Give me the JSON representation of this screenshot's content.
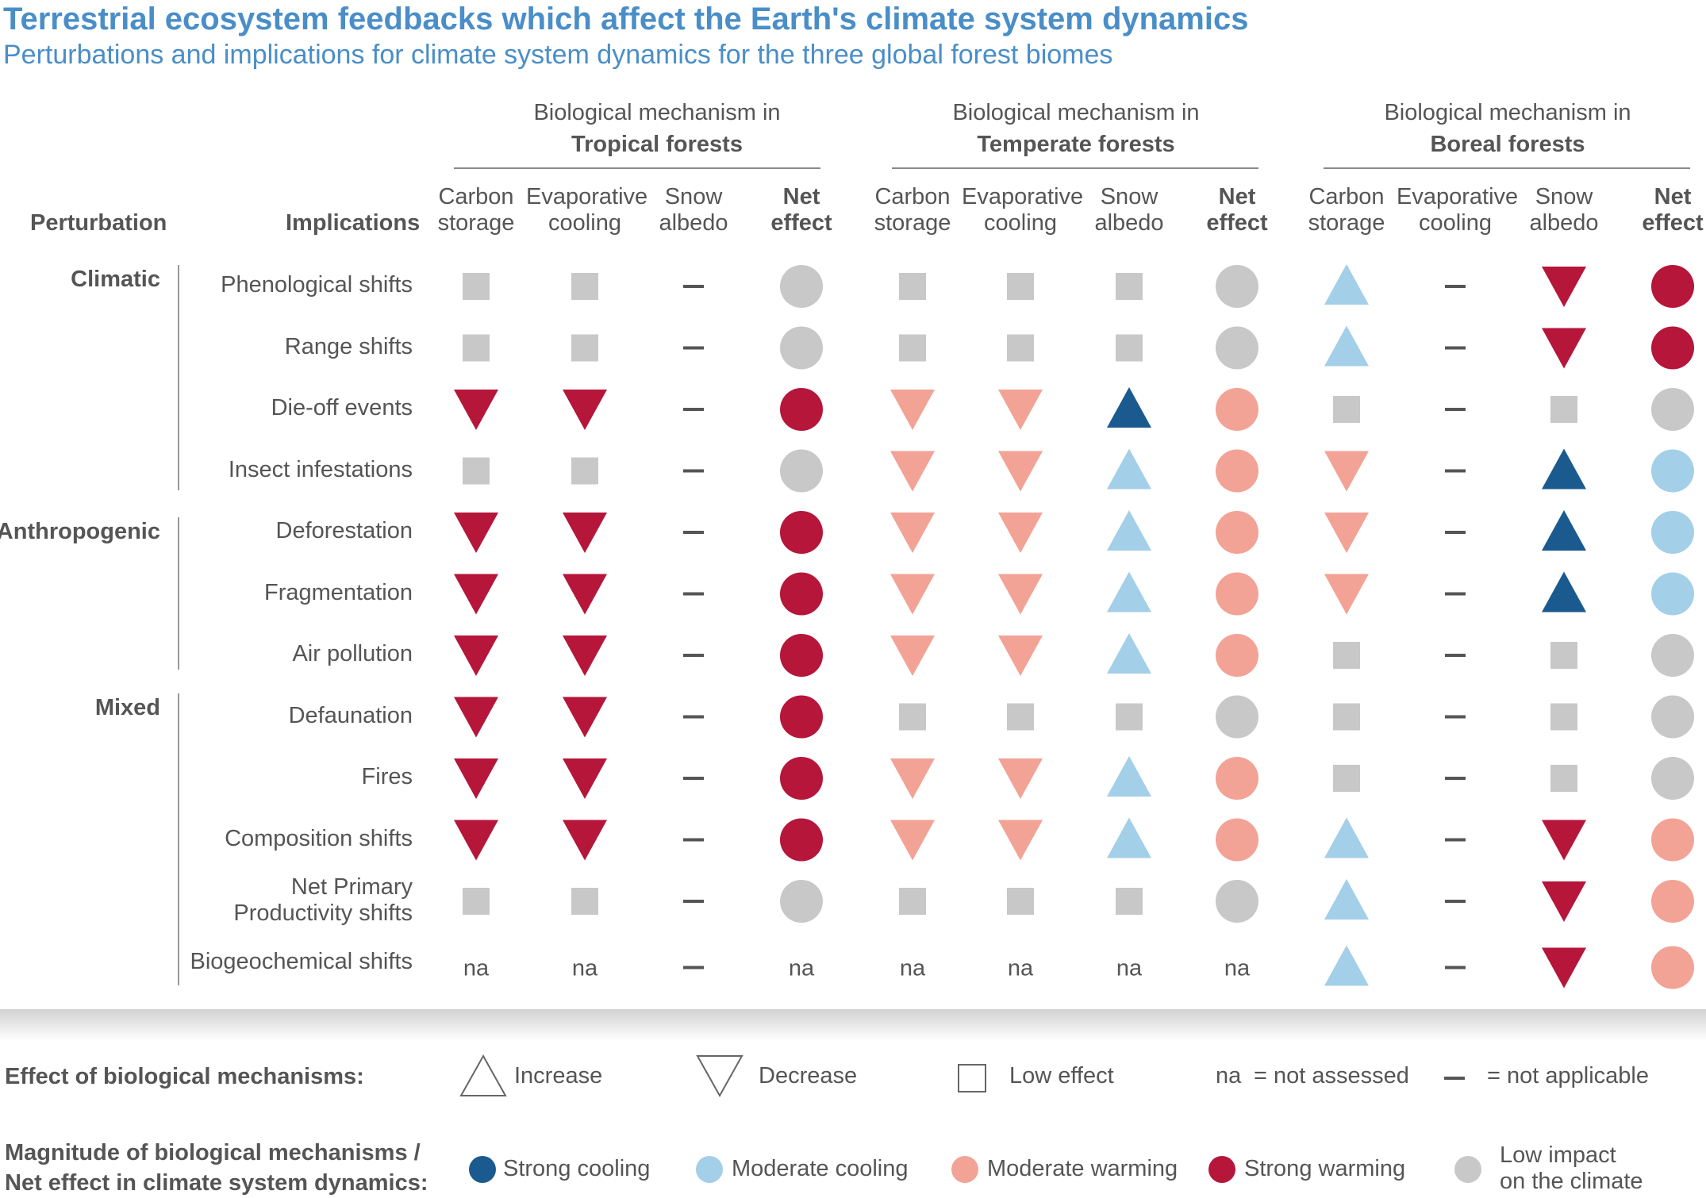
{
  "title": "Terrestrial ecosystem feedbacks which affect the Earth's climate system dynamics",
  "subtitle": "Perturbations and implications for climate system dynamics for the three global forest biomes",
  "headers": {
    "perturbation": "Perturbation",
    "implications": "Implications",
    "biomes": [
      {
        "line1": "Biological mechanism in",
        "name": "Tropical forests"
      },
      {
        "line1": "Biological mechanism in",
        "name": "Temperate forests"
      },
      {
        "line1": "Biological mechanism in",
        "name": "Boreal forests"
      }
    ],
    "columns": [
      {
        "line1": "Carbon",
        "line2": "storage",
        "bold": false
      },
      {
        "line1": "Evaporative",
        "line2": "cooling",
        "bold": false
      },
      {
        "line1": "Snow",
        "line2": "albedo",
        "bold": false
      },
      {
        "line1": "Net",
        "line2": "effect",
        "bold": true
      }
    ]
  },
  "groups": [
    {
      "label": "Climatic"
    },
    {
      "label": "Anthropogenic"
    },
    {
      "label": "Mixed"
    }
  ],
  "rows": [
    {
      "label": [
        "Phenological shifts"
      ],
      "group": 0,
      "cells": [
        "L",
        "L",
        "NA",
        "GC",
        "L",
        "L",
        "L",
        "GC",
        "MI",
        "NA",
        "SD",
        "SWC"
      ]
    },
    {
      "label": [
        "Range shifts"
      ],
      "group": 0,
      "cells": [
        "L",
        "L",
        "NA",
        "GC",
        "L",
        "L",
        "L",
        "GC",
        "MI",
        "NA",
        "SD",
        "SWC"
      ]
    },
    {
      "label": [
        "Die-off events"
      ],
      "group": 0,
      "cells": [
        "SD",
        "SD",
        "NA",
        "SWC",
        "MD",
        "MD",
        "SI",
        "MWC",
        "L",
        "NA",
        "L",
        "GC"
      ]
    },
    {
      "label": [
        "Insect infestations"
      ],
      "group": 0,
      "cells": [
        "L",
        "L",
        "NA",
        "GC",
        "MD",
        "MD",
        "MI",
        "MWC",
        "MD",
        "NA",
        "SI",
        "MCC"
      ]
    },
    {
      "label": [
        "Deforestation"
      ],
      "group": 1,
      "cells": [
        "SD",
        "SD",
        "NA",
        "SWC",
        "MD",
        "MD",
        "MI",
        "MWC",
        "MD",
        "NA",
        "SI",
        "MCC"
      ]
    },
    {
      "label": [
        "Fragmentation"
      ],
      "group": 1,
      "cells": [
        "SD",
        "SD",
        "NA",
        "SWC",
        "MD",
        "MD",
        "MI",
        "MWC",
        "MD",
        "NA",
        "SI",
        "MCC"
      ]
    },
    {
      "label": [
        "Air pollution"
      ],
      "group": 1,
      "cells": [
        "SD",
        "SD",
        "NA",
        "SWC",
        "MD",
        "MD",
        "MI",
        "MWC",
        "L",
        "NA",
        "L",
        "GC"
      ]
    },
    {
      "label": [
        "Defaunation"
      ],
      "group": 2,
      "cells": [
        "SD",
        "SD",
        "NA",
        "SWC",
        "L",
        "L",
        "L",
        "GC",
        "L",
        "NA",
        "L",
        "GC"
      ]
    },
    {
      "label": [
        "Fires"
      ],
      "group": 2,
      "cells": [
        "SD",
        "SD",
        "NA",
        "SWC",
        "MD",
        "MD",
        "MI",
        "MWC",
        "L",
        "NA",
        "L",
        "GC"
      ]
    },
    {
      "label": [
        "Composition shifts"
      ],
      "group": 2,
      "cells": [
        "SD",
        "SD",
        "NA",
        "SWC",
        "MD",
        "MD",
        "MI",
        "MWC",
        "MI",
        "NA",
        "SD",
        "MWC"
      ]
    },
    {
      "label": [
        "Net Primary",
        "Productivity shifts"
      ],
      "group": 2,
      "cells": [
        "L",
        "L",
        "NA",
        "GC",
        "L",
        "L",
        "L",
        "GC",
        "MI",
        "NA",
        "SD",
        "MWC"
      ]
    },
    {
      "label": [
        "Biogeochemical shifts"
      ],
      "group": 2,
      "cells": [
        "na",
        "na",
        "NA",
        "na",
        "na",
        "na",
        "na",
        "na",
        "MI",
        "NA",
        "SD",
        "MWC"
      ]
    }
  ],
  "na_text": "na",
  "colors": {
    "strong_cooling": "#1b5a8f",
    "moderate_cooling": "#a3cfe8",
    "moderate_warming": "#f2a396",
    "strong_warming": "#b5163a",
    "low_impact": "#c8c8c8",
    "dash": "#555555"
  },
  "legend": {
    "effect_title": "Effect of biological mechanisms:",
    "increase": "Increase",
    "decrease": "Decrease",
    "low_effect": "Low effect",
    "na_symbol": "na",
    "na_text": "= not assessed",
    "dash_text": "= not applicable",
    "magnitude_title_1": "Magnitude of biological mechanisms /",
    "magnitude_title_2": "Net effect in climate system dynamics:",
    "strong_cooling": "Strong cooling",
    "moderate_cooling": "Moderate cooling",
    "moderate_warming": "Moderate warming",
    "strong_warming": "Strong warming",
    "low_impact_1": "Low impact",
    "low_impact_2": "on the climate"
  }
}
